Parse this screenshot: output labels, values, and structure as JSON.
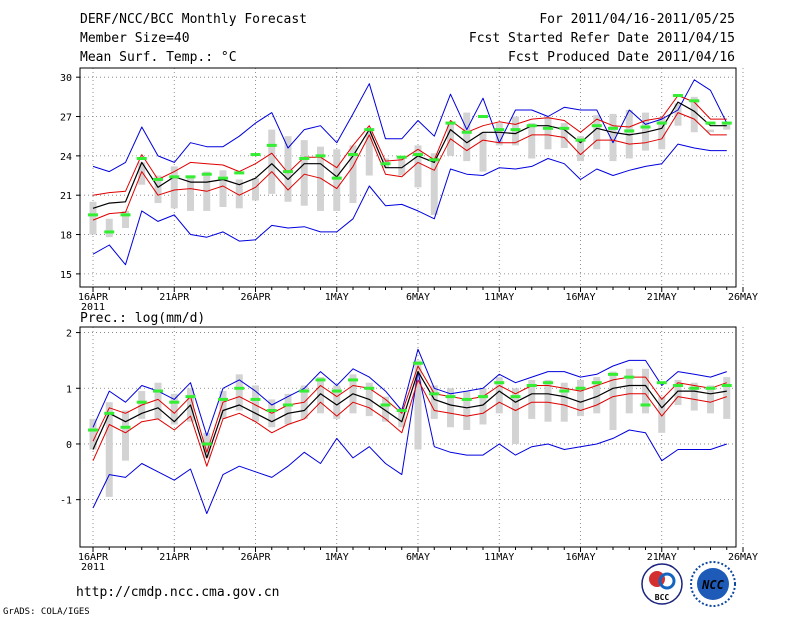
{
  "header": {
    "title": "DERF/NCC/BCC Monthly Forecast",
    "member_size": "Member Size=40",
    "variable": "Mean Surf. Temp.: °C",
    "forecast_period": "For 2011/04/16-2011/05/25",
    "start_date": "Fcst Started Refer Date 2011/04/15",
    "produced_date": "Fcst Produced Date 2011/04/16"
  },
  "footer": {
    "url": "http://cmdp.ncc.cma.gov.cn",
    "grads": "GrADS: COLA/IGES",
    "logo_left_text": "BCC",
    "logo_right_text": "NCC"
  },
  "colors": {
    "min_max": "#0000dd",
    "spread": "#e00000",
    "mean": "#000000",
    "bar": "#d3d3d3",
    "marker": "#33ee33"
  },
  "chart_data": [
    {
      "type": "line",
      "title": "Mean Surf. Temp.: °C",
      "xlabel": "",
      "ylabel": "°C",
      "x_tick_labels": [
        "16APR",
        "21APR",
        "26APR",
        "1MAY",
        "6MAY",
        "11MAY",
        "16MAY",
        "21MAY",
        "26MAY"
      ],
      "x_tick_days": [
        0,
        5,
        10,
        15,
        20,
        25,
        30,
        35,
        40
      ],
      "year_label": "2011",
      "ylim": [
        14,
        30.7
      ],
      "yticks": [
        15,
        18,
        21,
        24,
        27,
        30
      ],
      "grid": true,
      "series": [
        {
          "name": "ensemble max",
          "values": [
            23.2,
            22.8,
            23.5,
            26.2,
            24.0,
            23.5,
            25.0,
            24.7,
            24.7,
            25.5,
            26.5,
            27.3,
            24.6,
            26.0,
            26.3,
            25.0,
            27.2,
            29.5,
            25.3,
            25.3,
            26.7,
            25.5,
            28.7,
            26.0,
            28.4,
            25.0,
            27.5,
            27.5,
            27.0,
            27.7,
            27.5,
            27.5,
            25.0,
            27.5,
            26.4,
            26.8,
            27.5,
            29.8,
            29.0,
            26.5
          ]
        },
        {
          "name": "ensemble min",
          "values": [
            16.5,
            17.2,
            15.7,
            19.8,
            19.0,
            19.5,
            18.0,
            17.8,
            18.2,
            17.5,
            17.6,
            18.7,
            18.5,
            18.6,
            18.2,
            18.2,
            19.2,
            21.7,
            20.2,
            20.3,
            19.8,
            19.2,
            23.0,
            22.6,
            22.5,
            23.1,
            23.0,
            23.2,
            23.8,
            23.4,
            22.2,
            23.0,
            22.5,
            22.9,
            23.2,
            23.4,
            24.9,
            24.6,
            24.4,
            24.4
          ]
        },
        {
          "name": "mean + spread",
          "values": [
            21.0,
            21.2,
            21.3,
            24.1,
            22.2,
            22.8,
            23.5,
            23.4,
            23.3,
            22.8,
            23.4,
            24.2,
            22.7,
            23.9,
            23.9,
            23.1,
            24.8,
            26.3,
            23.6,
            23.7,
            24.5,
            23.7,
            26.7,
            25.8,
            26.3,
            26.6,
            26.4,
            26.8,
            26.9,
            26.7,
            25.8,
            26.8,
            26.3,
            26.2,
            26.7,
            26.9,
            28.6,
            28.1,
            26.8,
            26.8
          ]
        },
        {
          "name": "mean - spread",
          "values": [
            19.1,
            19.6,
            19.7,
            22.8,
            21.0,
            21.4,
            21.5,
            21.3,
            21.7,
            21.0,
            21.6,
            22.8,
            21.4,
            22.6,
            22.3,
            21.5,
            23.2,
            25.6,
            22.6,
            22.4,
            23.5,
            22.9,
            25.3,
            24.4,
            25.2,
            25.0,
            25.0,
            25.6,
            25.6,
            25.4,
            24.1,
            25.2,
            25.2,
            24.9,
            25.0,
            25.3,
            27.3,
            26.8,
            25.6,
            25.6
          ]
        },
        {
          "name": "ensemble mean",
          "values": [
            20.0,
            20.4,
            20.5,
            23.5,
            21.6,
            22.4,
            22.0,
            22.0,
            22.2,
            21.8,
            22.3,
            23.4,
            22.2,
            23.4,
            23.4,
            22.4,
            24.0,
            26.0,
            23.1,
            23.1,
            24.0,
            23.5,
            26.0,
            25.0,
            25.8,
            25.8,
            25.7,
            26.3,
            26.3,
            26.0,
            25.0,
            26.1,
            25.8,
            25.6,
            25.8,
            26.1,
            28.1,
            27.4,
            26.3,
            26.3
          ]
        },
        {
          "name": "ensemble markers",
          "values": [
            19.5,
            18.2,
            19.5,
            23.8,
            22.2,
            22.4,
            22.4,
            22.6,
            22.3,
            22.7,
            24.1,
            24.8,
            22.8,
            23.8,
            24.0,
            22.3,
            24.1,
            26.0,
            23.4,
            23.9,
            24.1,
            23.7,
            26.5,
            25.8,
            27.0,
            26.0,
            26.0,
            26.3,
            26.1,
            26.1,
            25.2,
            26.3,
            26.1,
            25.9,
            26.2,
            26.5,
            28.6,
            28.2,
            26.5,
            26.5
          ]
        },
        {
          "name": "gray bar top",
          "values": [
            20.5,
            19.2,
            19.8,
            23.5,
            22.5,
            23.2,
            22.5,
            22.8,
            22.9,
            22.2,
            22.3,
            26.0,
            25.5,
            25.2,
            24.7,
            24.5,
            24.8,
            25.8,
            23.8,
            23.9,
            24.8,
            24.2,
            26.5,
            27.3,
            25.8,
            26.5,
            27.0,
            26.5,
            27.0,
            26.5,
            25.5,
            27.1,
            27.2,
            27.5,
            27.3,
            26.9,
            28.0,
            28.5,
            26.0,
            26.4
          ]
        },
        {
          "name": "gray bar bottom",
          "values": [
            18.0,
            17.8,
            18.5,
            21.8,
            20.4,
            20.0,
            19.8,
            19.8,
            20.1,
            20.0,
            20.6,
            21.1,
            20.5,
            20.2,
            19.8,
            19.8,
            20.4,
            22.5,
            23.1,
            22.5,
            21.6,
            19.5,
            24.0,
            23.6,
            22.8,
            24.8,
            24.8,
            23.8,
            24.5,
            24.6,
            23.6,
            24.5,
            23.6,
            23.8,
            24.4,
            24.5,
            26.3,
            25.8,
            25.8,
            26.0
          ]
        }
      ]
    },
    {
      "type": "line",
      "title": "Prec.: log(mm/d)",
      "xlabel": "",
      "ylabel": "log(mm/d)",
      "x_tick_labels": [
        "16APR",
        "21APR",
        "26APR",
        "1MAY",
        "6MAY",
        "11MAY",
        "16MAY",
        "21MAY",
        "26MAY"
      ],
      "x_tick_days": [
        0,
        5,
        10,
        15,
        20,
        25,
        30,
        35,
        40
      ],
      "year_label": "2011",
      "ylim": [
        -1.85,
        2.1
      ],
      "yticks": [
        -1,
        0,
        1,
        2
      ],
      "grid": true,
      "series": [
        {
          "name": "ensemble max",
          "values": [
            0.3,
            0.95,
            0.75,
            1.05,
            0.95,
            0.8,
            1.1,
            0.15,
            1.0,
            1.15,
            0.95,
            0.7,
            0.85,
            1.0,
            1.3,
            1.05,
            1.35,
            1.2,
            0.95,
            0.6,
            1.7,
            1.0,
            0.9,
            0.95,
            1.0,
            1.25,
            1.1,
            1.2,
            1.3,
            1.3,
            1.2,
            1.25,
            1.4,
            1.5,
            1.5,
            1.05,
            1.3,
            1.25,
            1.2,
            1.3
          ]
        },
        {
          "name": "ensemble min",
          "values": [
            -1.15,
            -0.55,
            -0.6,
            -0.35,
            -0.5,
            -0.65,
            -0.45,
            -1.25,
            -0.55,
            -0.4,
            -0.5,
            -0.6,
            -0.4,
            -0.15,
            -0.35,
            0.1,
            -0.25,
            -0.05,
            -0.35,
            -0.55,
            1.3,
            -0.05,
            -0.15,
            -0.2,
            -0.2,
            0.0,
            -0.2,
            -0.05,
            0.0,
            -0.1,
            -0.05,
            0.0,
            0.1,
            0.25,
            0.2,
            -0.3,
            -0.1,
            -0.1,
            -0.1,
            0.0
          ]
        },
        {
          "name": "mean + spread",
          "values": [
            0.05,
            0.65,
            0.55,
            0.7,
            0.8,
            0.55,
            0.85,
            -0.15,
            0.75,
            0.85,
            0.7,
            0.55,
            0.7,
            0.75,
            1.05,
            0.85,
            1.05,
            1.0,
            0.8,
            0.55,
            1.4,
            0.9,
            0.85,
            0.8,
            0.85,
            1.05,
            0.9,
            1.05,
            1.05,
            1.0,
            0.95,
            1.05,
            1.15,
            1.2,
            1.2,
            0.8,
            1.1,
            1.05,
            1.0,
            1.1
          ]
        },
        {
          "name": "mean - spread",
          "values": [
            -0.3,
            0.35,
            0.2,
            0.4,
            0.45,
            0.25,
            0.5,
            -0.4,
            0.45,
            0.55,
            0.4,
            0.2,
            0.35,
            0.45,
            0.75,
            0.5,
            0.75,
            0.65,
            0.45,
            0.2,
            1.15,
            0.6,
            0.55,
            0.5,
            0.55,
            0.75,
            0.6,
            0.75,
            0.75,
            0.7,
            0.6,
            0.7,
            0.85,
            0.9,
            0.9,
            0.5,
            0.85,
            0.8,
            0.75,
            0.85
          ]
        },
        {
          "name": "ensemble mean",
          "values": [
            -0.1,
            0.55,
            0.4,
            0.55,
            0.65,
            0.4,
            0.7,
            -0.25,
            0.6,
            0.7,
            0.55,
            0.4,
            0.55,
            0.6,
            0.9,
            0.7,
            0.9,
            0.8,
            0.6,
            0.4,
            1.3,
            0.8,
            0.7,
            0.65,
            0.7,
            0.95,
            0.75,
            0.9,
            0.9,
            0.85,
            0.75,
            0.85,
            1.0,
            1.05,
            1.05,
            0.65,
            0.95,
            0.95,
            0.9,
            0.95
          ]
        },
        {
          "name": "ensemble markers",
          "values": [
            0.25,
            0.55,
            0.3,
            0.75,
            0.95,
            0.75,
            0.85,
            0.0,
            0.8,
            1.0,
            0.8,
            0.6,
            0.7,
            0.95,
            1.15,
            0.95,
            1.15,
            1.0,
            0.7,
            0.6,
            1.45,
            0.9,
            0.85,
            0.8,
            0.85,
            1.1,
            0.85,
            1.05,
            1.1,
            0.95,
            1.0,
            1.1,
            1.25,
            1.2,
            0.7,
            1.1,
            1.05,
            1.0,
            1.0,
            1.05
          ]
        },
        {
          "name": "gray bar top",
          "values": [
            0.45,
            0.75,
            0.6,
            0.95,
            1.1,
            0.9,
            1.0,
            0.2,
            0.95,
            1.25,
            1.05,
            0.8,
            0.9,
            1.05,
            1.2,
            1.05,
            1.25,
            1.1,
            0.85,
            0.65,
            1.5,
            1.05,
            1.0,
            0.95,
            1.0,
            1.2,
            1.0,
            1.15,
            1.15,
            1.1,
            1.15,
            1.2,
            1.3,
            1.35,
            1.35,
            0.85,
            1.15,
            1.1,
            1.05,
            1.2
          ]
        },
        {
          "name": "gray bar bottom",
          "values": [
            -0.1,
            -0.95,
            -0.3,
            0.45,
            0.45,
            0.35,
            0.4,
            -0.25,
            0.45,
            0.6,
            0.4,
            0.3,
            0.35,
            0.45,
            0.55,
            0.45,
            0.55,
            0.5,
            0.4,
            0.3,
            -0.1,
            0.45,
            0.3,
            0.25,
            0.35,
            0.55,
            0.0,
            0.45,
            0.4,
            0.4,
            0.5,
            0.55,
            0.25,
            0.55,
            0.55,
            0.2,
            0.7,
            0.6,
            0.55,
            0.45
          ]
        }
      ]
    }
  ]
}
